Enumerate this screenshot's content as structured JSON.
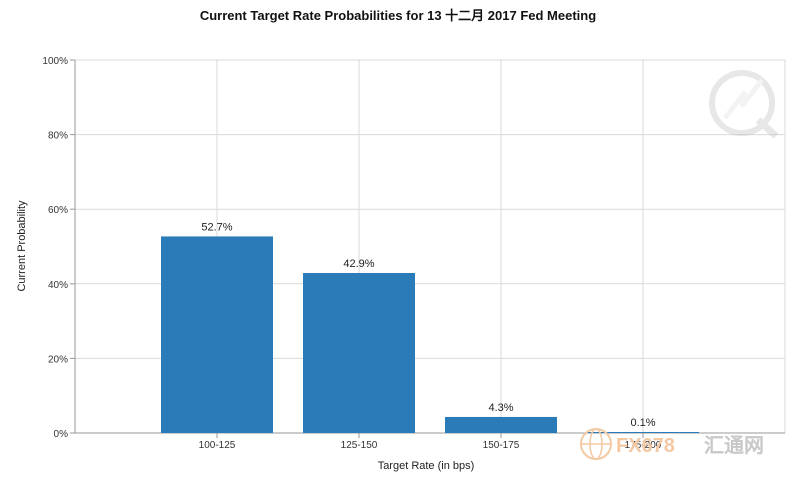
{
  "chart_data": {
    "type": "bar",
    "title": "Current Target Rate Probabilities for 13 十二月 2017 Fed Meeting",
    "xlabel": "Target Rate (in bps)",
    "ylabel": "Current Probability",
    "categories": [
      "100-125",
      "125-150",
      "150-175",
      "175-200"
    ],
    "values": [
      52.7,
      42.9,
      4.3,
      0.1
    ],
    "value_labels": [
      "52.7%",
      "42.9%",
      "4.3%",
      "0.1%"
    ],
    "ylim": [
      0,
      100
    ],
    "yticks": [
      0,
      20,
      40,
      60,
      80,
      100
    ],
    "ytick_labels": [
      "0%",
      "20%",
      "40%",
      "60%",
      "80%",
      "100%"
    ],
    "grid": true,
    "bar_color": "#2b7bb9"
  },
  "watermark": {
    "fx_text": "FX678",
    "cn_text": "汇通网"
  },
  "colors": {
    "grid": "#d9d9d9",
    "axis": "#999999",
    "watermark_gray": "#c8c8c8",
    "watermark_orange": "#f3c9a4"
  }
}
